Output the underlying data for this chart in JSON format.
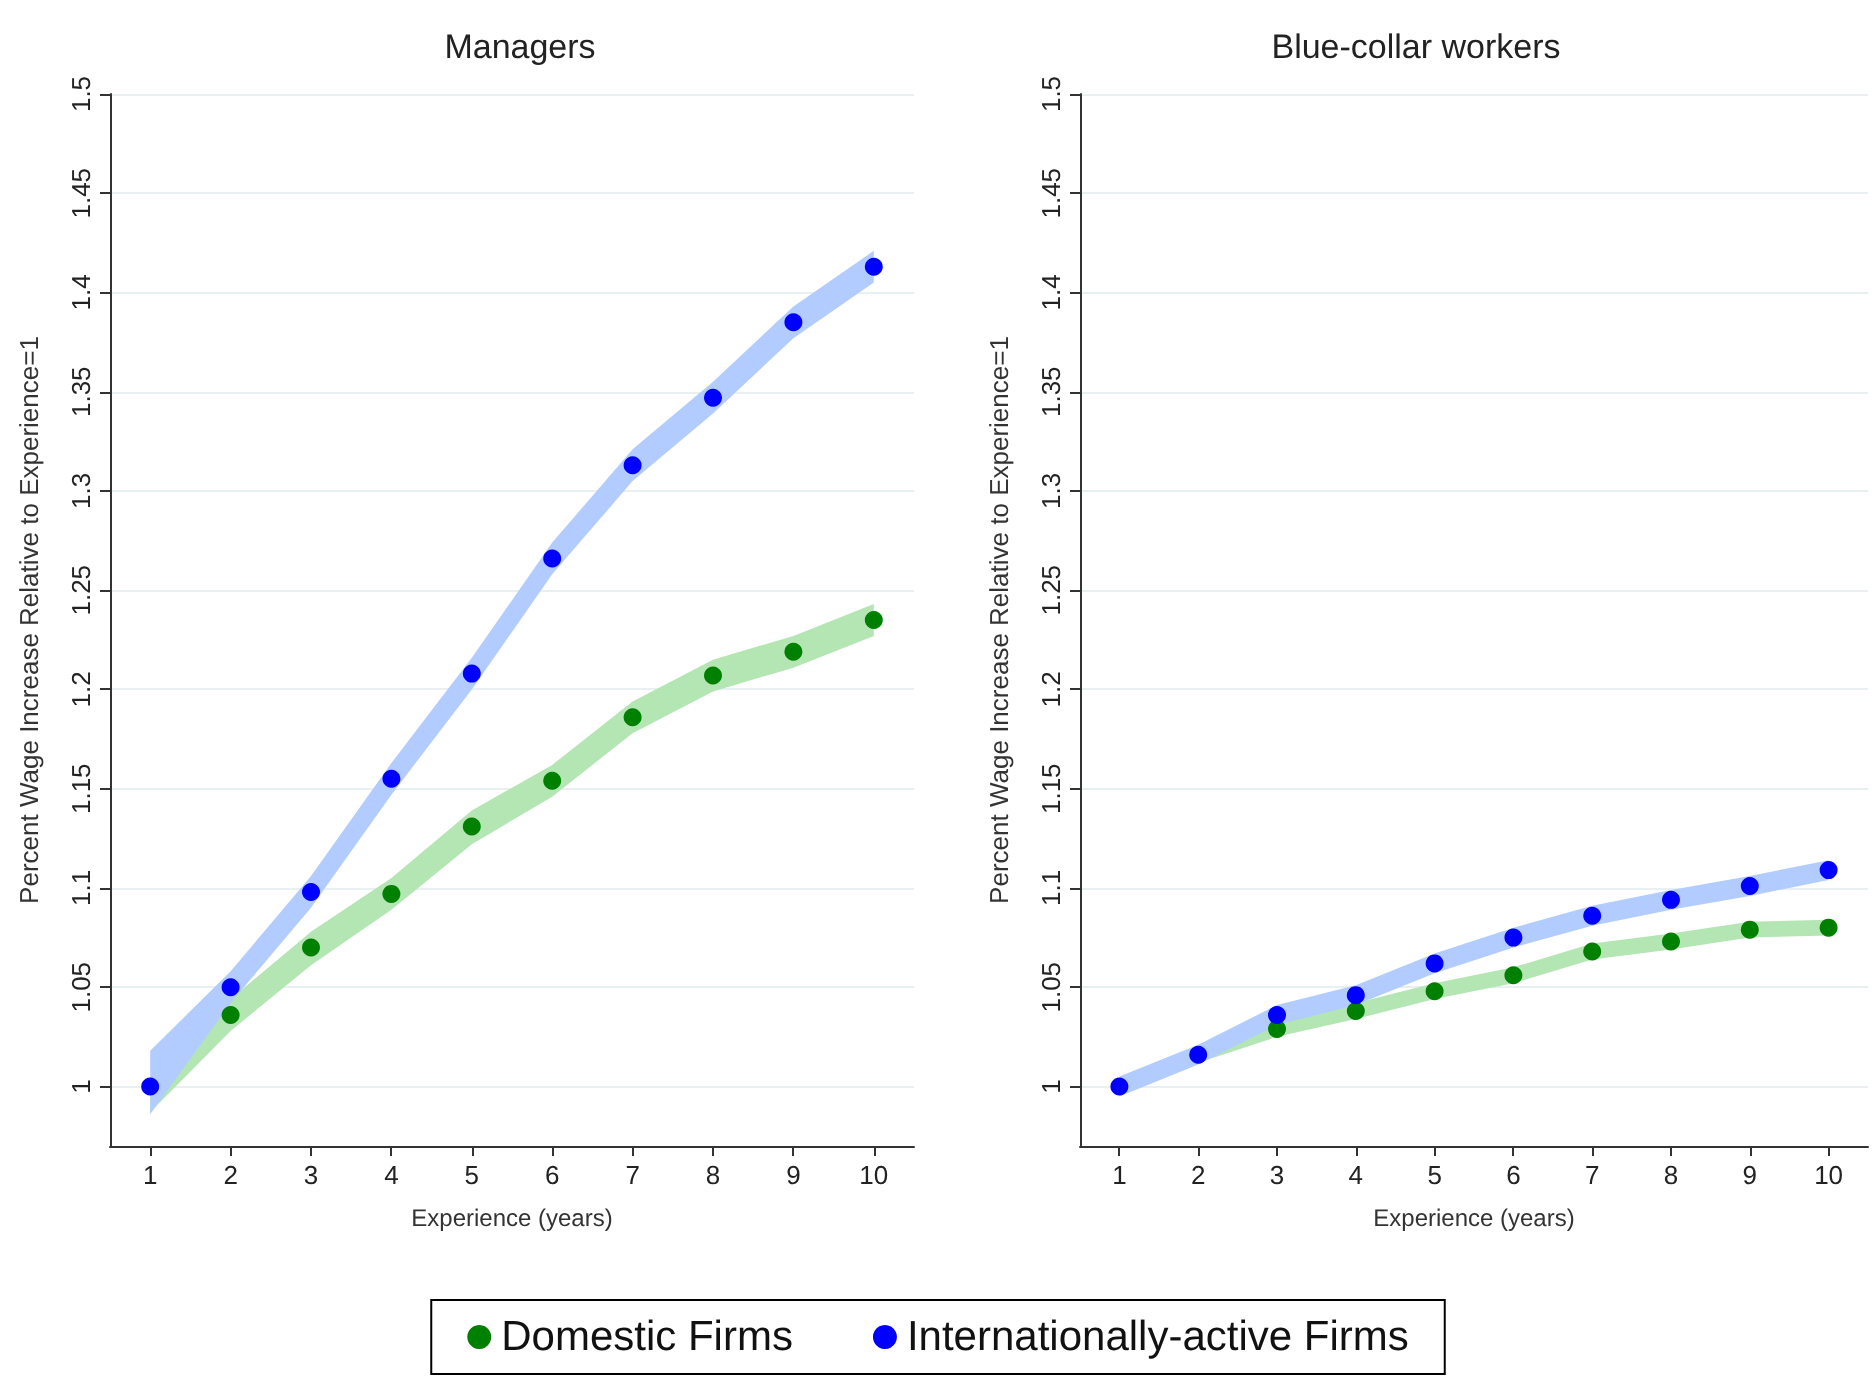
{
  "chart_data": [
    {
      "type": "scatter",
      "title": "Managers",
      "xlabel": "Experience (years)",
      "ylabel": "Percent Wage Increase Relative to Experience=1",
      "x": [
        1,
        2,
        3,
        4,
        5,
        6,
        7,
        8,
        9,
        10
      ],
      "xlim": [
        0.5,
        10.5
      ],
      "xticks": [
        1,
        2,
        3,
        4,
        5,
        6,
        7,
        8,
        9,
        10
      ],
      "ylim": [
        0.97,
        1.5
      ],
      "yticks": [
        1,
        1.05,
        1.1,
        1.15,
        1.2,
        1.25,
        1.3,
        1.35,
        1.4,
        1.45,
        1.5
      ],
      "grid": "y",
      "marker": "circle",
      "legend": false,
      "series": [
        {
          "color": "#008000",
          "values": [
            null,
            1.036,
            1.07,
            1.097,
            1.131,
            1.154,
            1.186,
            1.207,
            1.219,
            1.235
          ],
          "lower": [
            0.987,
            1.028,
            1.061,
            1.089,
            1.122,
            1.146,
            1.178,
            1.199,
            1.211,
            1.227
          ],
          "upper": [
            1.0,
            1.044,
            1.078,
            1.105,
            1.139,
            1.162,
            1.194,
            1.215,
            1.227,
            1.243
          ]
        },
        {
          "color": "#0000ff",
          "values": [
            1.0,
            1.05,
            1.098,
            1.155,
            1.208,
            1.266,
            1.313,
            1.347,
            1.385,
            1.413
          ],
          "lower": [
            0.986,
            1.042,
            1.09,
            1.147,
            1.2,
            1.258,
            1.305,
            1.339,
            1.377,
            1.405
          ],
          "upper": [
            1.018,
            1.058,
            1.106,
            1.163,
            1.216,
            1.274,
            1.321,
            1.355,
            1.393,
            1.421
          ]
        }
      ]
    },
    {
      "type": "scatter",
      "title": "Blue-collar workers",
      "xlabel": "Experience (years)",
      "ylabel": "Percent Wage Increase Relative to Experience=1",
      "x": [
        1,
        2,
        3,
        4,
        5,
        6,
        7,
        8,
        9,
        10
      ],
      "xlim": [
        0.5,
        10.5
      ],
      "xticks": [
        1,
        2,
        3,
        4,
        5,
        6,
        7,
        8,
        9,
        10
      ],
      "ylim": [
        0.97,
        1.5
      ],
      "yticks": [
        1,
        1.05,
        1.1,
        1.15,
        1.2,
        1.25,
        1.3,
        1.35,
        1.4,
        1.45,
        1.5
      ],
      "grid": "y",
      "marker": "circle",
      "legend": "bottom",
      "series": [
        {
          "name": "Domestic Firms",
          "color": "#008000",
          "values": [
            null,
            null,
            1.029,
            1.038,
            1.048,
            1.056,
            1.068,
            1.073,
            1.079,
            1.08
          ],
          "lower": [
            0.996,
            1.012,
            1.025,
            1.034,
            1.044,
            1.052,
            1.064,
            1.069,
            1.075,
            1.076
          ],
          "upper": [
            1.004,
            1.02,
            1.033,
            1.042,
            1.052,
            1.06,
            1.072,
            1.077,
            1.083,
            1.084
          ]
        },
        {
          "name": "Internationally-active Firms",
          "color": "#0000ff",
          "values": [
            1.0,
            1.016,
            1.036,
            1.046,
            1.062,
            1.075,
            1.086,
            1.094,
            1.101,
            1.109
          ],
          "lower": [
            0.995,
            1.011,
            1.031,
            1.041,
            1.057,
            1.07,
            1.081,
            1.089,
            1.096,
            1.104
          ],
          "upper": [
            1.005,
            1.021,
            1.041,
            1.051,
            1.067,
            1.08,
            1.091,
            1.099,
            1.106,
            1.114
          ]
        }
      ]
    }
  ]
}
